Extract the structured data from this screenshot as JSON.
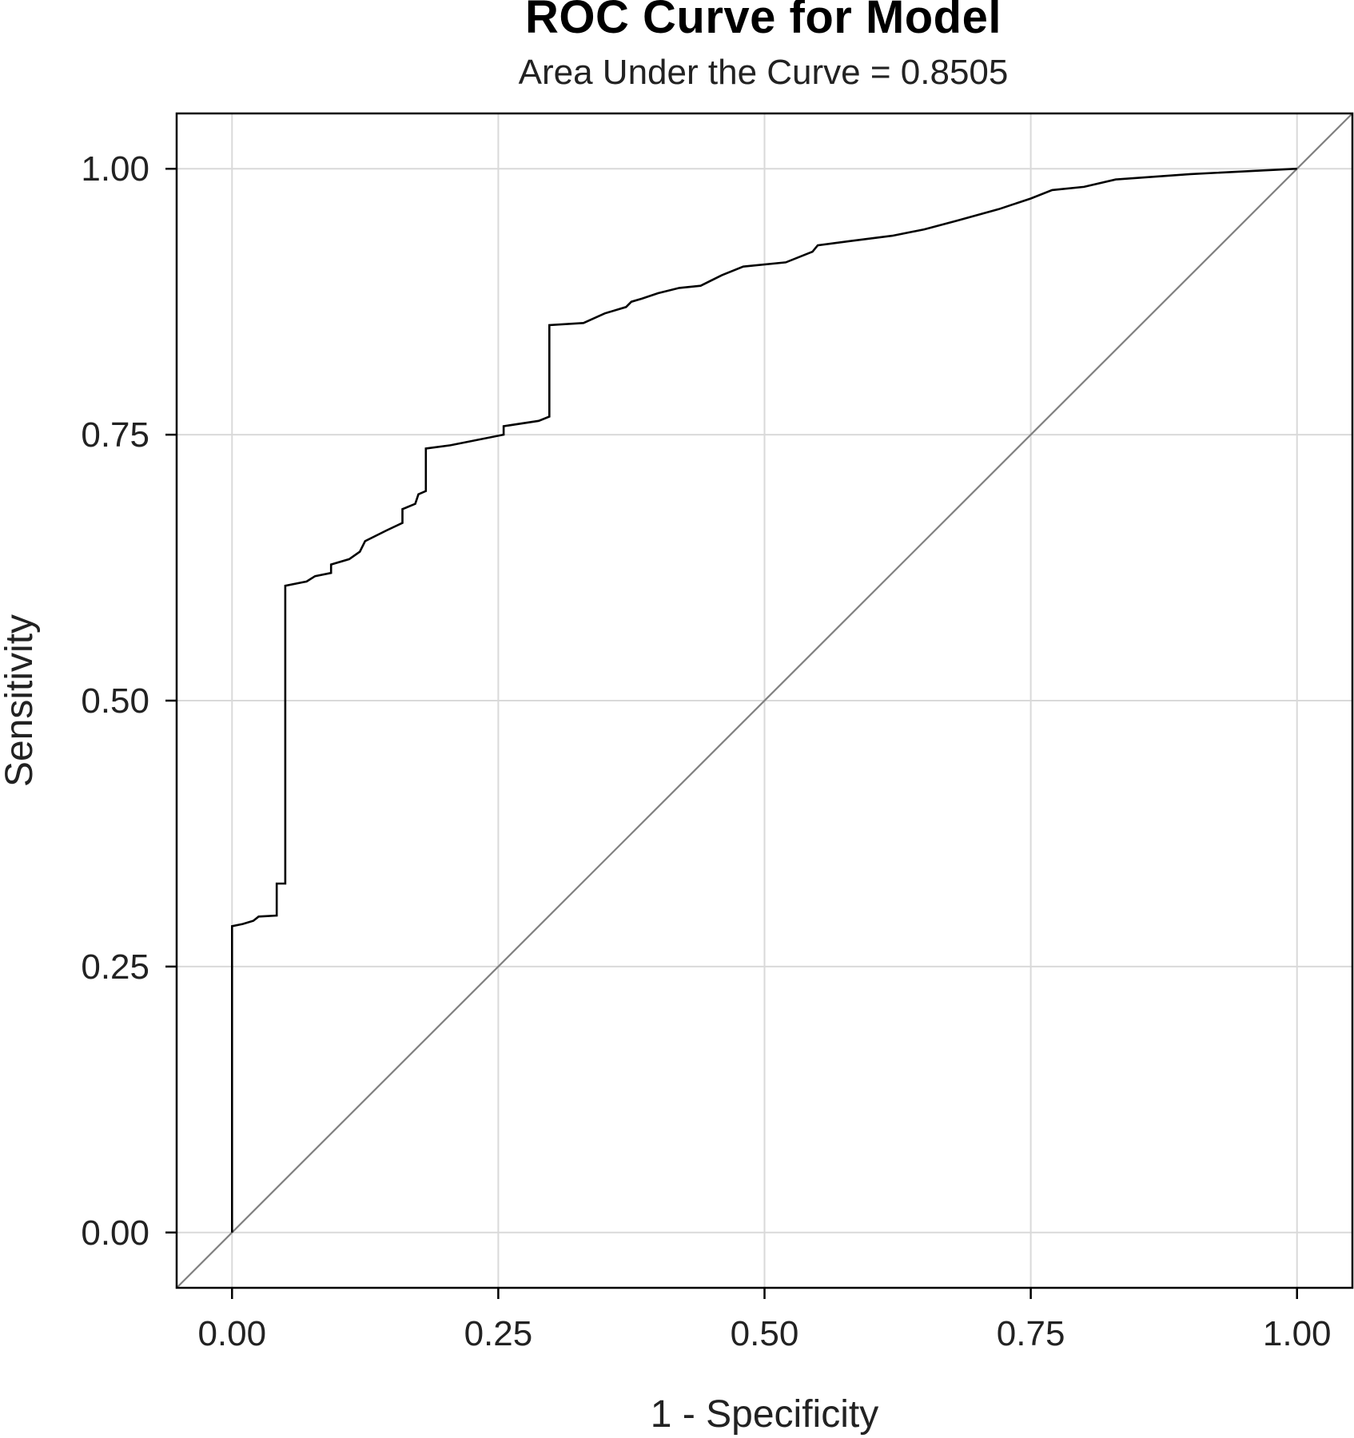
{
  "chart_data": {
    "type": "line",
    "title": "ROC Curve for Model",
    "subtitle": "Area Under the Curve = 0.8505",
    "xlabel": "1 - Specificity",
    "ylabel": "Sensitivity",
    "xlim": [
      -0.052,
      1.052
    ],
    "ylim": [
      -0.052,
      1.052
    ],
    "x_ticks": [
      0,
      0.25,
      0.5,
      0.75,
      1
    ],
    "y_ticks": [
      0,
      0.25,
      0.5,
      0.75,
      1
    ],
    "x_tick_labels": [
      "0.00",
      "0.25",
      "0.50",
      "0.75",
      "1.00"
    ],
    "y_tick_labels": [
      "0.00",
      "0.25",
      "0.50",
      "0.75",
      "1.00"
    ],
    "grid": true,
    "colors": {
      "curve": "#000000",
      "diagonal": "#808080",
      "grid": "#d9d9d9",
      "frame": "#000000"
    },
    "series": [
      {
        "values": [
          [
            0,
            0
          ],
          [
            0,
            0.288
          ],
          [
            0.01,
            0.29
          ],
          [
            0.02,
            0.293
          ],
          [
            0.025,
            0.297
          ],
          [
            0.042,
            0.298
          ],
          [
            0.042,
            0.328
          ],
          [
            0.05,
            0.328
          ],
          [
            0.05,
            0.608
          ],
          [
            0.07,
            0.612
          ],
          [
            0.078,
            0.617
          ],
          [
            0.093,
            0.62
          ],
          [
            0.093,
            0.628
          ],
          [
            0.11,
            0.633
          ],
          [
            0.12,
            0.64
          ],
          [
            0.125,
            0.65
          ],
          [
            0.145,
            0.66
          ],
          [
            0.16,
            0.667
          ],
          [
            0.16,
            0.68
          ],
          [
            0.172,
            0.685
          ],
          [
            0.175,
            0.694
          ],
          [
            0.182,
            0.697
          ],
          [
            0.182,
            0.737
          ],
          [
            0.205,
            0.74
          ],
          [
            0.255,
            0.75
          ],
          [
            0.255,
            0.758
          ],
          [
            0.288,
            0.763
          ],
          [
            0.298,
            0.767
          ],
          [
            0.298,
            0.853
          ],
          [
            0.33,
            0.855
          ],
          [
            0.35,
            0.864
          ],
          [
            0.37,
            0.87
          ],
          [
            0.375,
            0.875
          ],
          [
            0.385,
            0.878
          ],
          [
            0.4,
            0.883
          ],
          [
            0.42,
            0.888
          ],
          [
            0.44,
            0.89
          ],
          [
            0.46,
            0.9
          ],
          [
            0.48,
            0.908
          ],
          [
            0.52,
            0.912
          ],
          [
            0.545,
            0.922
          ],
          [
            0.55,
            0.928
          ],
          [
            0.58,
            0.932
          ],
          [
            0.62,
            0.937
          ],
          [
            0.65,
            0.943
          ],
          [
            0.68,
            0.951
          ],
          [
            0.72,
            0.962
          ],
          [
            0.75,
            0.972
          ],
          [
            0.77,
            0.98
          ],
          [
            0.8,
            0.983
          ],
          [
            0.83,
            0.99
          ],
          [
            0.9,
            0.995
          ],
          [
            1,
            1
          ]
        ]
      }
    ]
  }
}
